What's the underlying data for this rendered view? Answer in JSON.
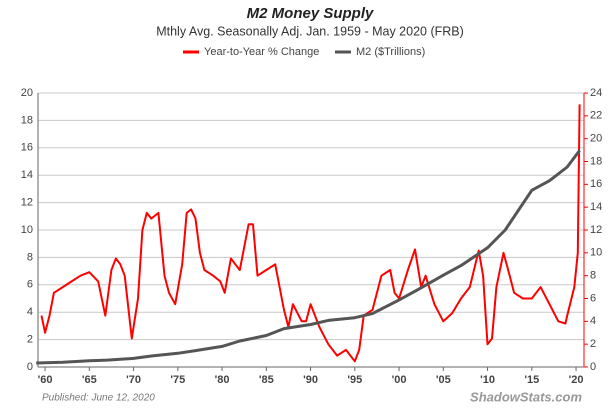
{
  "chart_data": {
    "type": "line",
    "title": "M2 Money Supply",
    "subtitle": "Mthly Avg. Seasonally Adj. Jan. 1959 - May 2020  (FRB)",
    "footnote": "Published: June 12, 2020",
    "source": "ShadowStats.com",
    "grid": true,
    "xlim": [
      1959.2,
      2020.9
    ],
    "xticks": [
      {
        "value": 1960,
        "label": "'60"
      },
      {
        "value": 1965,
        "label": "'65"
      },
      {
        "value": 1970,
        "label": "'70"
      },
      {
        "value": 1975,
        "label": "'75"
      },
      {
        "value": 1980,
        "label": "'80"
      },
      {
        "value": 1985,
        "label": "'85"
      },
      {
        "value": 1990,
        "label": "'90"
      },
      {
        "value": 1995,
        "label": "'95"
      },
      {
        "value": 2000,
        "label": "'00"
      },
      {
        "value": 2005,
        "label": "'05"
      },
      {
        "value": 2010,
        "label": "'10"
      },
      {
        "value": 2015,
        "label": "'15"
      },
      {
        "value": 2020,
        "label": "'20"
      }
    ],
    "ylim": [
      0,
      20
    ],
    "yticks": [
      0,
      2,
      4,
      6,
      8,
      10,
      12,
      14,
      16,
      18,
      20
    ],
    "y2lim": [
      0,
      24
    ],
    "y2ticks": [
      0,
      2,
      4,
      6,
      8,
      10,
      12,
      14,
      16,
      18,
      20,
      22,
      24
    ],
    "y2color": "#ff0000",
    "series": [
      {
        "name": "Year-to-Year % Change",
        "color": "#ff0000",
        "axis": "y2",
        "x": [
          1959.6,
          1960.0,
          1960.5,
          1961,
          1962,
          1963,
          1964,
          1965,
          1966,
          1966.8,
          1967.5,
          1968,
          1968.5,
          1969,
          1969.8,
          1970.5,
          1971,
          1971.5,
          1972,
          1972.8,
          1973.5,
          1974,
          1974.7,
          1975.5,
          1976,
          1976.5,
          1977,
          1977.5,
          1978,
          1979,
          1979.8,
          1980.3,
          1981,
          1981.5,
          1982,
          1983,
          1983.5,
          1984,
          1985,
          1986,
          1987,
          1987.5,
          1988,
          1989,
          1989.5,
          1990,
          1991,
          1992,
          1993,
          1994,
          1995,
          1995.5,
          1996,
          1997,
          1998,
          1999,
          1999.5,
          2000,
          2001,
          2001.8,
          2002.5,
          2003,
          2004,
          2005,
          2006,
          2007,
          2008,
          2009,
          2009.5,
          2010,
          2010.5,
          2011,
          2011.8,
          2012.5,
          2013,
          2014,
          2015,
          2016,
          2017,
          2018,
          2018.8,
          2019,
          2019.8,
          2020.2,
          2020.4
        ],
        "values": [
          4.5,
          3.0,
          4.5,
          6.5,
          7.0,
          7.5,
          8.0,
          8.3,
          7.5,
          4.5,
          8.5,
          9.5,
          9.0,
          8.0,
          2.5,
          6.0,
          12.0,
          13.5,
          13.0,
          13.5,
          8.0,
          6.5,
          5.5,
          9.0,
          13.5,
          13.8,
          13.0,
          10.0,
          8.5,
          8.0,
          7.5,
          6.5,
          9.5,
          9.0,
          8.5,
          12.5,
          12.5,
          8.0,
          8.5,
          9.0,
          5.0,
          3.5,
          5.5,
          4.0,
          4.0,
          5.5,
          3.5,
          2.0,
          1.0,
          1.5,
          0.5,
          1.5,
          4.5,
          5.0,
          8.0,
          8.5,
          6.5,
          6.0,
          8.5,
          10.3,
          7.0,
          8.0,
          5.5,
          4.0,
          4.7,
          6.0,
          7.0,
          10.2,
          8.0,
          2.0,
          2.5,
          7.0,
          10.0,
          8.0,
          6.5,
          6.0,
          6.0,
          7.0,
          5.5,
          4.0,
          3.8,
          4.5,
          7.0,
          10.0,
          23.0
        ]
      },
      {
        "name": "M2 ($Trillions)",
        "color": "#555555",
        "x": [
          1959.0,
          1962,
          1965,
          1967,
          1970,
          1972,
          1975,
          1977,
          1980,
          1982,
          1985,
          1987,
          1990,
          1992,
          1995,
          1997,
          2000,
          2002,
          2005,
          2007,
          2010,
          2012,
          2015,
          2017,
          2019,
          2020.4
        ],
        "values": [
          0.29,
          0.35,
          0.46,
          0.5,
          0.63,
          0.8,
          1.0,
          1.2,
          1.5,
          1.9,
          2.3,
          2.8,
          3.1,
          3.4,
          3.6,
          3.9,
          4.9,
          5.6,
          6.7,
          7.4,
          8.7,
          10.0,
          12.9,
          13.6,
          14.6,
          15.8
        ]
      }
    ]
  }
}
